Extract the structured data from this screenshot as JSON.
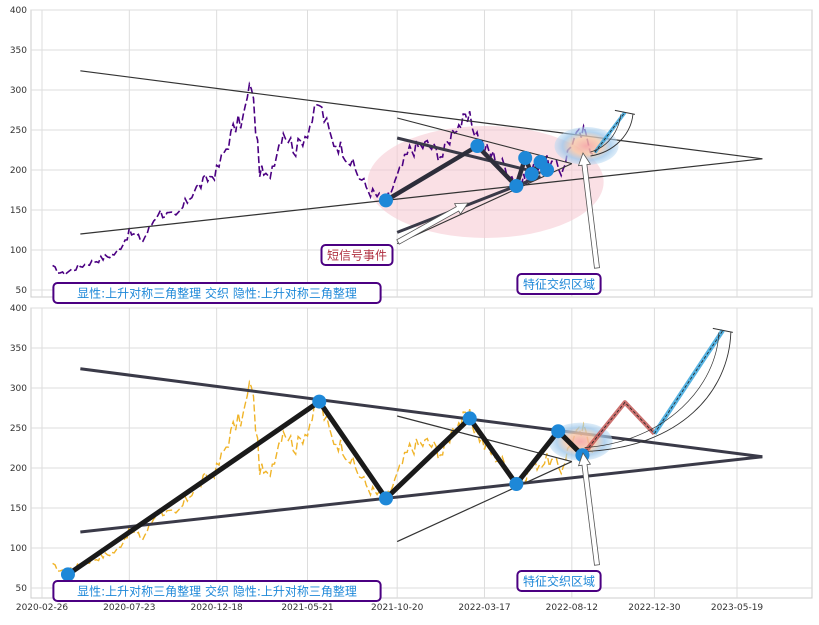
{
  "chart_data": [
    {
      "type": "line",
      "panel": "top",
      "title": "",
      "ylim": [
        40,
        400
      ],
      "y_ticks": [
        50,
        100,
        150,
        200,
        250,
        300,
        350,
        400
      ],
      "grid": true,
      "colors": {
        "price": "#4b0082",
        "fit_lines": "#333333",
        "pattern": "#2d2d3a",
        "marker": "#1e88d8",
        "ellipse": "#f5c6cf",
        "target": "#3aa6dd"
      },
      "price_series": {
        "name": "",
        "points": [
          [
            "2020-03-15",
            78
          ],
          [
            "2020-04-01",
            70
          ],
          [
            "2020-05-01",
            80
          ],
          [
            "2020-06-01",
            88
          ],
          [
            "2020-07-01",
            96
          ],
          [
            "2020-07-23",
            122
          ],
          [
            "2020-08-15",
            112
          ],
          [
            "2020-09-10",
            148
          ],
          [
            "2020-10-10",
            140
          ],
          [
            "2020-11-10",
            175
          ],
          [
            "2020-12-18",
            198
          ],
          [
            "2021-01-15",
            250
          ],
          [
            "2021-02-01",
            265
          ],
          [
            "2021-02-15",
            310
          ],
          [
            "2021-03-01",
            200
          ],
          [
            "2021-03-15",
            188
          ],
          [
            "2021-04-10",
            250
          ],
          [
            "2021-05-01",
            225
          ],
          [
            "2021-05-21",
            250
          ],
          [
            "2021-06-10",
            283
          ],
          [
            "2021-07-01",
            238
          ],
          [
            "2021-07-20",
            226
          ],
          [
            "2021-08-10",
            200
          ],
          [
            "2021-09-01",
            175
          ],
          [
            "2021-10-01",
            160
          ],
          [
            "2021-10-20",
            190
          ],
          [
            "2021-11-10",
            225
          ],
          [
            "2021-12-10",
            232
          ],
          [
            "2022-01-05",
            218
          ],
          [
            "2022-01-25",
            255
          ],
          [
            "2022-02-20",
            262
          ],
          [
            "2022-03-17",
            228
          ],
          [
            "2022-04-20",
            205
          ],
          [
            "2022-05-15",
            180
          ],
          [
            "2022-06-10",
            205
          ],
          [
            "2022-07-05",
            210
          ],
          [
            "2022-07-25",
            198
          ],
          [
            "2022-08-12",
            236
          ],
          [
            "2022-09-01",
            246
          ],
          [
            "2022-09-20",
            222
          ]
        ]
      },
      "fit_lines": [
        {
          "from": [
            "2020-05-01",
            324
          ],
          "to": [
            "2023-07-01",
            214
          ]
        },
        {
          "from": [
            "2020-05-01",
            120
          ],
          "to": [
            "2023-07-01",
            214
          ]
        },
        {
          "from": [
            "2021-10-20",
            265
          ],
          "to": [
            "2022-08-12",
            208
          ]
        },
        {
          "from": [
            "2021-10-20",
            108
          ],
          "to": [
            "2022-08-12",
            208
          ]
        }
      ],
      "pattern_points": [
        [
          "2021-10-01",
          162
        ],
        [
          "2022-03-05",
          230
        ],
        [
          "2022-05-10",
          180
        ],
        [
          "2022-05-25",
          215
        ],
        [
          "2022-06-05",
          195
        ],
        [
          "2022-06-20",
          210
        ],
        [
          "2022-07-01",
          200
        ]
      ],
      "annotations": [
        {
          "label": "短信号事件",
          "label_color": "#b03040"
        },
        {
          "label": "特征交织区域",
          "label_color": "#1e88d8"
        },
        {
          "label": "显性:上升对称三角整理 交织 隐性:上升对称三角整理",
          "label_color": "#1e88d8"
        }
      ]
    },
    {
      "type": "line",
      "panel": "bottom",
      "title": "",
      "ylim": [
        40,
        400
      ],
      "y_ticks": [
        50,
        100,
        150,
        200,
        250,
        300,
        350,
        400
      ],
      "x_ticks": [
        "2020-02-26",
        "2020-07-23",
        "2020-12-18",
        "2021-05-21",
        "2021-10-20",
        "2022-03-17",
        "2022-08-12",
        "2022-12-30",
        "2023-05-19"
      ],
      "grid": true,
      "colors": {
        "price": "#f0b429",
        "fit_lines": "#333333",
        "pattern": "#1a1a1a",
        "marker": "#1e88d8",
        "projection": "#c0504d",
        "target": "#3aa6dd"
      },
      "price_series": {
        "name": "",
        "points": [
          [
            "2020-03-15",
            78
          ],
          [
            "2020-04-01",
            70
          ],
          [
            "2020-05-01",
            80
          ],
          [
            "2020-06-01",
            88
          ],
          [
            "2020-07-01",
            96
          ],
          [
            "2020-07-23",
            122
          ],
          [
            "2020-08-15",
            112
          ],
          [
            "2020-09-10",
            148
          ],
          [
            "2020-10-10",
            140
          ],
          [
            "2020-11-10",
            175
          ],
          [
            "2020-12-18",
            198
          ],
          [
            "2021-01-15",
            250
          ],
          [
            "2021-02-01",
            265
          ],
          [
            "2021-02-15",
            310
          ],
          [
            "2021-03-01",
            200
          ],
          [
            "2021-03-15",
            188
          ],
          [
            "2021-04-10",
            250
          ],
          [
            "2021-05-01",
            225
          ],
          [
            "2021-05-21",
            250
          ],
          [
            "2021-06-10",
            283
          ],
          [
            "2021-07-01",
            238
          ],
          [
            "2021-07-20",
            226
          ],
          [
            "2021-08-10",
            200
          ],
          [
            "2021-09-01",
            175
          ],
          [
            "2021-10-01",
            160
          ],
          [
            "2021-10-20",
            190
          ],
          [
            "2021-11-10",
            225
          ],
          [
            "2021-12-10",
            232
          ],
          [
            "2022-01-05",
            218
          ],
          [
            "2022-01-25",
            255
          ],
          [
            "2022-02-20",
            262
          ],
          [
            "2022-03-17",
            228
          ],
          [
            "2022-04-20",
            205
          ],
          [
            "2022-05-15",
            180
          ],
          [
            "2022-06-10",
            205
          ],
          [
            "2022-07-05",
            210
          ],
          [
            "2022-07-25",
            198
          ],
          [
            "2022-08-12",
            236
          ],
          [
            "2022-09-01",
            246
          ],
          [
            "2022-09-20",
            222
          ]
        ]
      },
      "fit_lines": [
        {
          "from": [
            "2020-05-01",
            324
          ],
          "to": [
            "2023-07-01",
            214
          ]
        },
        {
          "from": [
            "2020-05-01",
            120
          ],
          "to": [
            "2023-07-01",
            214
          ]
        },
        {
          "from": [
            "2021-10-20",
            265
          ],
          "to": [
            "2022-08-12",
            208
          ]
        },
        {
          "from": [
            "2021-10-20",
            108
          ],
          "to": [
            "2022-08-12",
            208
          ]
        }
      ],
      "pattern_points": [
        [
          "2020-04-10",
          67
        ],
        [
          "2021-06-10",
          283
        ],
        [
          "2021-10-01",
          162
        ],
        [
          "2022-02-20",
          262
        ],
        [
          "2022-05-10",
          180
        ],
        [
          "2022-07-20",
          246
        ],
        [
          "2022-08-30",
          216
        ]
      ],
      "projection_points": [
        [
          "2022-08-30",
          216
        ],
        [
          "2022-11-10",
          282
        ],
        [
          "2022-12-30",
          243
        ]
      ],
      "target_points": [
        [
          "2022-12-30",
          243
        ],
        [
          "2023-04-25",
          372
        ]
      ],
      "annotations": [
        {
          "label": "特征交织区域",
          "label_color": "#1e88d8"
        },
        {
          "label": "显性:上升对称三角整理 交织 隐性:上升对称三角整理",
          "label_color": "#1e88d8"
        }
      ]
    }
  ]
}
